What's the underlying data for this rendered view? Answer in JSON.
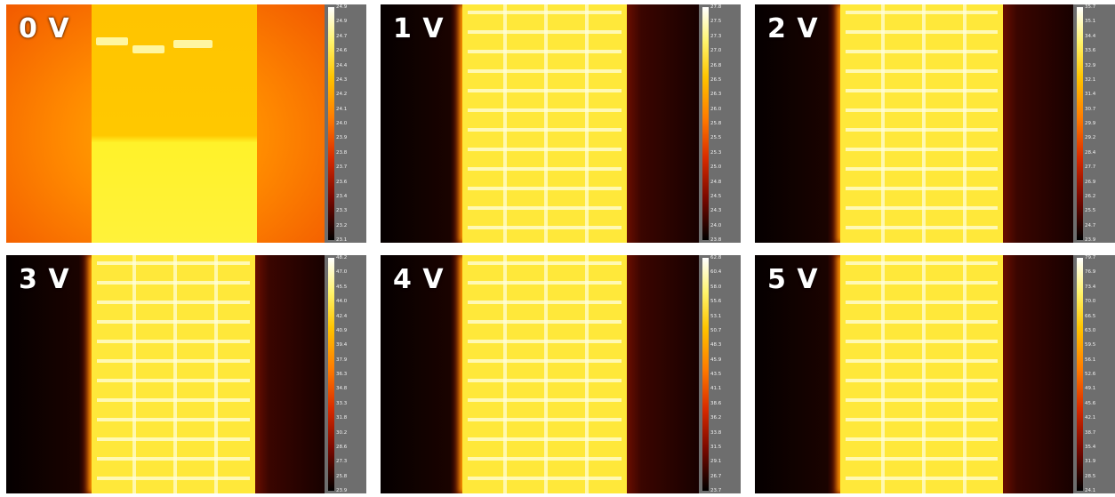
{
  "panels": [
    {
      "label": "0 V",
      "ticks": [
        "24.9",
        "24.9",
        "24.7",
        "24.6",
        "24.4",
        "24.3",
        "24.2",
        "24.1",
        "24.0",
        "23.9",
        "23.8",
        "23.7",
        "23.6",
        "23.4",
        "23.3",
        "23.2",
        "23.1"
      ]
    },
    {
      "label": "1 V",
      "ticks": [
        "27.8",
        "27.5",
        "27.3",
        "27.0",
        "26.8",
        "26.5",
        "26.3",
        "26.0",
        "25.8",
        "25.5",
        "25.3",
        "25.0",
        "24.8",
        "24.5",
        "24.3",
        "24.0",
        "23.8"
      ]
    },
    {
      "label": "2 V",
      "ticks": [
        "35.7",
        "35.1",
        "34.4",
        "33.6",
        "32.9",
        "32.1",
        "31.4",
        "30.7",
        "29.9",
        "29.2",
        "28.4",
        "27.7",
        "26.9",
        "26.2",
        "25.5",
        "24.7",
        "23.9"
      ]
    },
    {
      "label": "3 V",
      "ticks": [
        "48.2",
        "47.0",
        "45.5",
        "44.0",
        "42.4",
        "40.9",
        "39.4",
        "37.9",
        "36.3",
        "34.8",
        "33.3",
        "31.8",
        "30.2",
        "28.6",
        "27.3",
        "25.8",
        "23.9"
      ]
    },
    {
      "label": "4 V",
      "ticks": [
        "62.8",
        "60.4",
        "58.0",
        "55.6",
        "53.1",
        "50.7",
        "48.3",
        "45.9",
        "43.5",
        "41.1",
        "38.6",
        "36.2",
        "33.8",
        "31.5",
        "29.1",
        "26.7",
        "23.7"
      ]
    },
    {
      "label": "5 V",
      "ticks": [
        "79.7",
        "76.9",
        "73.4",
        "70.0",
        "66.5",
        "63.0",
        "59.5",
        "56.1",
        "52.6",
        "49.1",
        "45.6",
        "42.1",
        "38.7",
        "35.4",
        "31.9",
        "28.5",
        "24.1"
      ]
    }
  ]
}
